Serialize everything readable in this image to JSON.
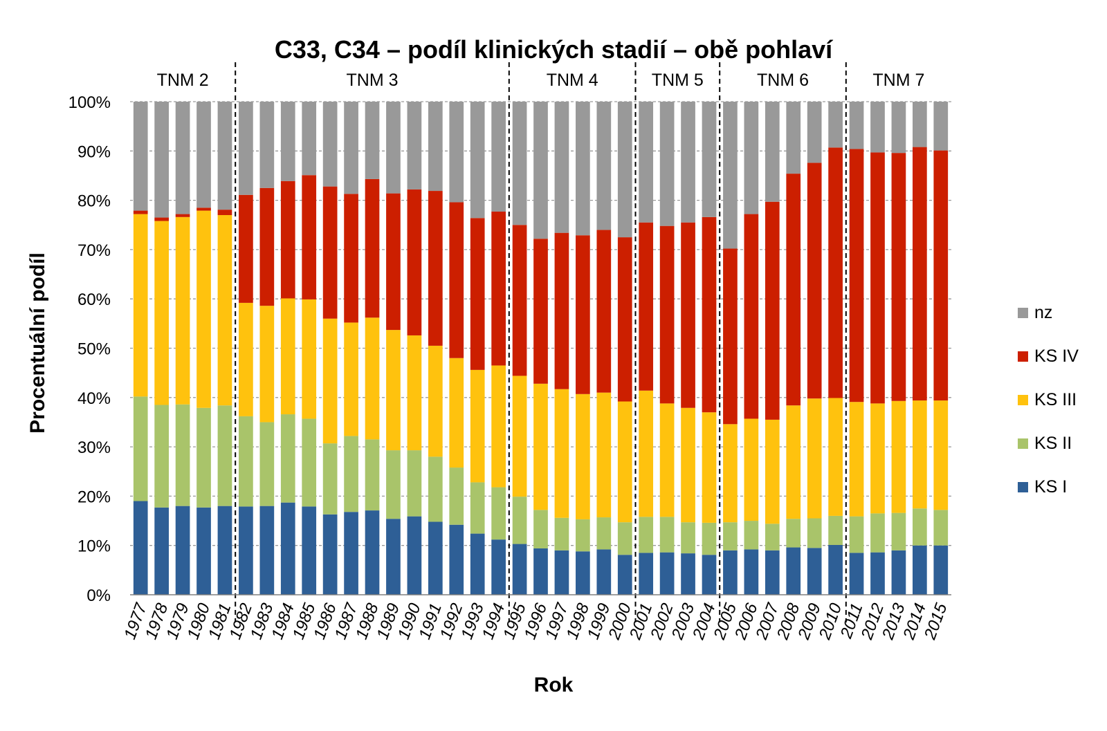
{
  "chart_data": {
    "type": "bar",
    "stacked": true,
    "title": "C33, C34 – podíl klinických stadií – obě pohlaví",
    "xlabel": "Rok",
    "ylabel": "Procentuální podíl",
    "ylim": [
      0,
      100
    ],
    "y_ticks": [
      "0%",
      "10%",
      "20%",
      "30%",
      "40%",
      "50%",
      "60%",
      "70%",
      "80%",
      "90%",
      "100%"
    ],
    "grid": true,
    "legend_position": "right",
    "categories": [
      "1977",
      "1978",
      "1979",
      "1980",
      "1981",
      "1982",
      "1983",
      "1984",
      "1985",
      "1986",
      "1987",
      "1988",
      "1989",
      "1990",
      "1991",
      "1992",
      "1993",
      "1994",
      "1995",
      "1996",
      "1997",
      "1998",
      "1999",
      "2000",
      "2001",
      "2002",
      "2003",
      "2004",
      "2005",
      "2006",
      "2007",
      "2008",
      "2009",
      "2010",
      "2011",
      "2012",
      "2013",
      "2014",
      "2015"
    ],
    "periods": [
      {
        "label": "TNM 2",
        "start": "1977",
        "end": "1981"
      },
      {
        "label": "TNM 3",
        "start": "1982",
        "end": "1994"
      },
      {
        "label": "TNM 4",
        "start": "1995",
        "end": "2000"
      },
      {
        "label": "TNM 5",
        "start": "2001",
        "end": "2004"
      },
      {
        "label": "TNM 6",
        "start": "2005",
        "end": "2010"
      },
      {
        "label": "TNM 7",
        "start": "2011",
        "end": "2015"
      }
    ],
    "series": [
      {
        "name": "KS I",
        "color": "#2e5f96",
        "values": [
          19.0,
          17.7,
          18.0,
          17.7,
          18.0,
          17.9,
          18.0,
          18.7,
          17.9,
          16.3,
          16.8,
          17.1,
          15.4,
          15.9,
          14.8,
          14.2,
          12.4,
          11.2,
          10.3,
          9.4,
          9.0,
          8.8,
          9.2,
          8.1,
          8.5,
          8.6,
          8.4,
          8.1,
          9.0,
          9.2,
          9.0,
          9.6,
          9.5,
          10.1,
          8.5,
          8.6,
          9.0,
          10.0,
          10.0
        ]
      },
      {
        "name": "KS II",
        "color": "#a9c46a",
        "values": [
          21.2,
          20.8,
          20.6,
          20.2,
          20.4,
          18.3,
          17.0,
          17.9,
          17.8,
          14.4,
          15.4,
          14.4,
          13.9,
          13.4,
          13.2,
          11.6,
          10.4,
          10.6,
          9.6,
          7.8,
          6.6,
          6.5,
          6.5,
          6.6,
          7.3,
          7.2,
          6.3,
          6.5,
          5.7,
          5.8,
          5.4,
          5.8,
          6.0,
          5.9,
          7.4,
          7.9,
          7.6,
          7.5,
          7.2
        ]
      },
      {
        "name": "KS III",
        "color": "#ffc20e",
        "values": [
          37.0,
          37.3,
          38.0,
          40.0,
          38.6,
          23.0,
          23.6,
          23.5,
          24.2,
          25.3,
          23.0,
          24.7,
          24.4,
          23.3,
          22.5,
          22.2,
          22.8,
          24.7,
          24.5,
          25.6,
          26.1,
          25.4,
          25.3,
          24.5,
          25.6,
          23.0,
          23.2,
          22.4,
          19.9,
          20.7,
          21.1,
          23.0,
          24.3,
          23.9,
          23.2,
          22.3,
          22.7,
          21.9,
          22.2
        ]
      },
      {
        "name": "KS IV",
        "color": "#cc1f00",
        "values": [
          0.7,
          0.7,
          0.6,
          0.6,
          1.1,
          21.9,
          23.9,
          23.8,
          25.2,
          26.8,
          26.1,
          28.1,
          27.7,
          29.6,
          31.4,
          31.6,
          30.8,
          31.2,
          30.6,
          29.4,
          31.7,
          32.2,
          33.0,
          33.3,
          34.1,
          36.0,
          37.6,
          39.6,
          35.6,
          41.5,
          44.2,
          47.0,
          47.8,
          50.8,
          51.3,
          50.9,
          50.3,
          51.4,
          50.7
        ]
      },
      {
        "name": "nz",
        "color": "#999999",
        "values": [
          22.1,
          23.5,
          22.8,
          21.5,
          21.9,
          18.9,
          17.5,
          16.1,
          14.9,
          17.2,
          18.7,
          15.7,
          18.6,
          17.8,
          18.1,
          20.4,
          23.6,
          22.3,
          25.0,
          27.8,
          26.6,
          27.1,
          26.0,
          27.5,
          24.5,
          25.2,
          24.5,
          23.4,
          29.8,
          22.8,
          20.3,
          14.6,
          12.4,
          9.3,
          9.6,
          10.3,
          10.4,
          9.2,
          9.9
        ]
      }
    ]
  }
}
